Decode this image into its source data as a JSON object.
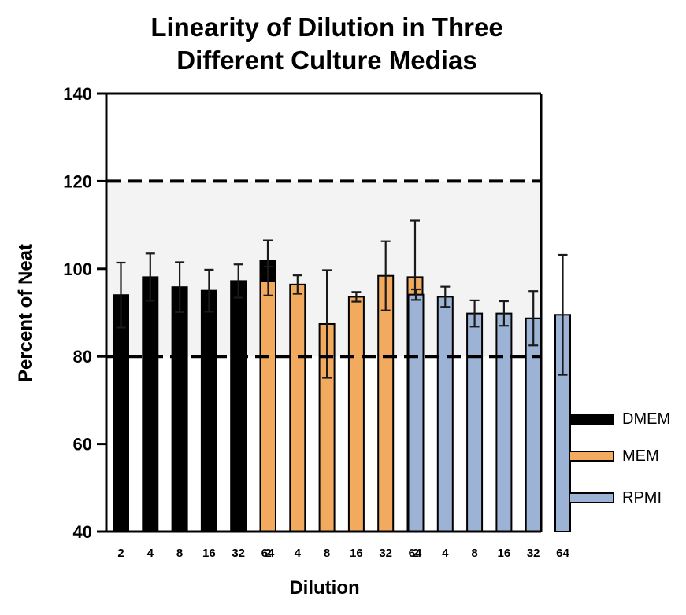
{
  "chart_data": {
    "type": "bar",
    "title_lines": [
      "Linearity of Dilution in Three",
      "Different Culture Medias"
    ],
    "xlabel": "Dilution",
    "ylabel": "Percent of Neat",
    "ylim": [
      40,
      140
    ],
    "yticks": [
      40,
      60,
      80,
      100,
      120,
      140
    ],
    "grid": false,
    "legend_position": "right",
    "reference_lines": [
      {
        "y": 120,
        "style": "dashed"
      },
      {
        "y": 80,
        "style": "dashed"
      }
    ],
    "shaded_band": {
      "from": 80,
      "to": 120,
      "color": "#f3f3f3"
    },
    "series": [
      {
        "name": "DMEM",
        "color": "#000000",
        "categories": [
          "2",
          "4",
          "8",
          "16",
          "32",
          "64"
        ],
        "values": [
          94.0,
          98.1,
          95.8,
          95.0,
          97.2,
          101.8
        ],
        "error": [
          7.4,
          5.4,
          5.7,
          4.8,
          3.8,
          4.7
        ]
      },
      {
        "name": "MEM",
        "color": "#f2aa5f",
        "categories": [
          "2",
          "4",
          "8",
          "16",
          "32",
          "64"
        ],
        "values": [
          97.2,
          96.4,
          87.4,
          93.6,
          98.4,
          98.1
        ],
        "error": [
          3.3,
          2.1,
          12.3,
          1.1,
          7.9,
          12.9
        ]
      },
      {
        "name": "RPMI",
        "color": "#9db3d6",
        "categories": [
          "2",
          "4",
          "8",
          "16",
          "32",
          "64"
        ],
        "values": [
          94.1,
          93.6,
          89.8,
          89.8,
          88.7,
          89.5
        ],
        "error": [
          1.2,
          2.3,
          3.0,
          2.8,
          6.2,
          13.7
        ]
      }
    ]
  }
}
